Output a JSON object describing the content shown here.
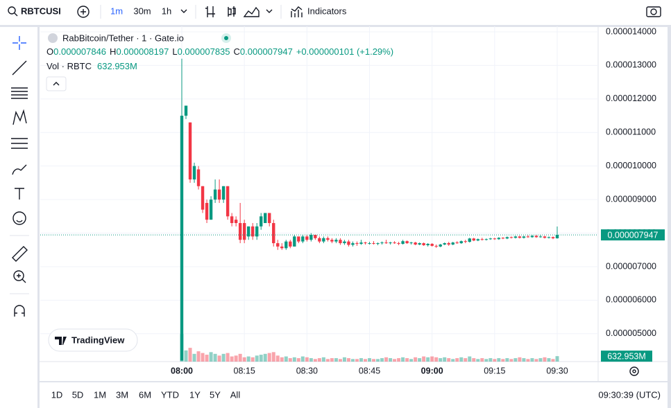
{
  "toolbar": {
    "symbol": "RBTCUSI",
    "intervals": [
      "1m",
      "30m",
      "1h"
    ],
    "indicators": "Indicators"
  },
  "chart_data": {
    "type": "candlestick",
    "title": "RabBitcoin/Tether · 1 · Gate.io",
    "ohlc_prefixes": [
      "O",
      "H",
      "L",
      "C"
    ],
    "last_labels": {
      "open": "0.000007846",
      "high": "0.000008197",
      "low": "0.000007835",
      "close": "0.000007947",
      "change": "+0.000000101 (+1.29%)"
    },
    "volume_title": "Vol · RBTC",
    "volume_value_label": "632.953M",
    "watermark": "TradingView",
    "up_color": "#089981",
    "down_color": "#f23645",
    "grid": true,
    "categories": [
      "08:00",
      null,
      null,
      null,
      null,
      null,
      null,
      null,
      null,
      null,
      null,
      null,
      null,
      null,
      null,
      "08:15",
      null,
      null,
      null,
      null,
      null,
      null,
      null,
      null,
      null,
      null,
      null,
      null,
      null,
      null,
      "08:30",
      null,
      null,
      null,
      null,
      null,
      null,
      null,
      null,
      null,
      null,
      null,
      null,
      null,
      null,
      "08:45",
      null,
      null,
      null,
      null,
      null,
      null,
      null,
      null,
      null,
      null,
      null,
      null,
      null,
      null,
      "09:00",
      null,
      null,
      null,
      null,
      null,
      null,
      null,
      null,
      null,
      null,
      null,
      null,
      null,
      null,
      "09:15",
      null,
      null,
      null,
      null,
      null,
      null,
      null,
      null,
      null,
      null,
      null,
      null,
      null,
      null,
      "09:30"
    ],
    "open": [
      4.2e-06,
      1.15e-05,
      1.13e-05,
      9.6e-06,
      9.9e-06,
      9.4e-06,
      8.9e-06,
      8.4e-06,
      9e-06,
      9.3e-06,
      9e-06,
      9.4e-06,
      8.5e-06,
      8.4e-06,
      8.3e-06,
      8.3e-06,
      7.9e-06,
      8.2e-06,
      7.9e-06,
      8.2e-06,
      8.3e-06,
      8.6e-06,
      8.3e-06,
      7.7e-06,
      7.6e-06,
      7.55e-06,
      7.75e-06,
      7.6e-06,
      7.9e-06,
      7.75e-06,
      7.9e-06,
      7.8e-06,
      7.95e-06,
      7.85e-06,
      7.75e-06,
      7.85e-06,
      7.8e-06,
      7.75e-06,
      7.8e-06,
      7.7e-06,
      7.75e-06,
      7.65e-06,
      7.7e-06,
      7.68e-06,
      7.72e-06,
      7.7e-06,
      7.7e-06,
      7.68e-06,
      7.7e-06,
      7.72e-06,
      7.7e-06,
      7.72e-06,
      7.7e-06,
      7.68e-06,
      7.76e-06,
      7.7e-06,
      7.72e-06,
      7.66e-06,
      7.7e-06,
      7.64e-06,
      7.68e-06,
      7.62e-06,
      7.6e-06,
      7.66e-06,
      7.7e-06,
      7.66e-06,
      7.72e-06,
      7.7e-06,
      7.76e-06,
      7.74e-06,
      7.84e-06,
      7.78e-06,
      7.82e-06,
      7.8e-06,
      7.82e-06,
      7.84e-06,
      7.82e-06,
      7.86e-06,
      7.84e-06,
      7.88e-06,
      7.86e-06,
      7.9e-06,
      7.86e-06,
      7.9e-06,
      7.88e-06,
      7.92e-06,
      7.88e-06,
      7.9e-06,
      7.86e-06,
      7.88e-06,
      7.846e-06
    ],
    "high": [
      1.32e-05,
      1.18e-05,
      1.13e-05,
      1.01e-05,
      1e-05,
      9.4e-06,
      9e-06,
      9.1e-06,
      9.6e-06,
      9.6e-06,
      9.4e-06,
      9.4e-06,
      8.6e-06,
      8.5e-06,
      8.9e-06,
      8.4e-06,
      8.2e-06,
      8.3e-06,
      8.3e-06,
      8.6e-06,
      8.6e-06,
      8.6e-06,
      8.4e-06,
      7.8e-06,
      7.7e-06,
      7.8e-06,
      7.8e-06,
      7.95e-06,
      7.9e-06,
      7.95e-06,
      7.95e-06,
      8e-06,
      7.95e-06,
      7.9e-06,
      7.9e-06,
      7.9e-06,
      7.85e-06,
      7.85e-06,
      7.85e-06,
      7.8e-06,
      7.8e-06,
      7.75e-06,
      7.75e-06,
      7.8e-06,
      7.74e-06,
      7.74e-06,
      7.76e-06,
      7.72e-06,
      7.75e-06,
      7.8e-06,
      7.74e-06,
      7.76e-06,
      7.74e-06,
      7.8e-06,
      7.78e-06,
      7.74e-06,
      7.74e-06,
      7.72e-06,
      7.72e-06,
      7.7e-06,
      7.7e-06,
      7.66e-06,
      7.68e-06,
      7.72e-06,
      7.74e-06,
      7.74e-06,
      7.76e-06,
      7.78e-06,
      7.8e-06,
      7.86e-06,
      7.86e-06,
      7.84e-06,
      7.86e-06,
      7.84e-06,
      7.86e-06,
      7.86e-06,
      7.88e-06,
      7.88e-06,
      7.9e-06,
      7.9e-06,
      7.92e-06,
      7.92e-06,
      7.92e-06,
      7.94e-06,
      7.94e-06,
      7.94e-06,
      7.94e-06,
      7.92e-06,
      7.9e-06,
      7.9e-06,
      8.197e-06
    ],
    "low": [
      4.2e-06,
      1.14e-05,
      9.5e-06,
      9.5e-06,
      9.3e-06,
      8.6e-06,
      8.3e-06,
      8.4e-06,
      8.9e-06,
      8.9e-06,
      8.9e-06,
      8.4e-06,
      8.2e-06,
      8.2e-06,
      7.7e-06,
      7.7e-06,
      7.8e-06,
      7.8e-06,
      7.8e-06,
      8.1e-06,
      8.3e-06,
      8.2e-06,
      7.6e-06,
      7.5e-06,
      7.5e-06,
      7.5e-06,
      7.55e-06,
      7.6e-06,
      7.7e-06,
      7.7e-06,
      7.75e-06,
      7.75e-06,
      7.8e-06,
      7.7e-06,
      7.7e-06,
      7.75e-06,
      7.7e-06,
      7.7e-06,
      7.65e-06,
      7.65e-06,
      7.6e-06,
      7.6e-06,
      7.62e-06,
      7.65e-06,
      7.66e-06,
      7.66e-06,
      7.66e-06,
      7.64e-06,
      7.66e-06,
      7.68e-06,
      7.66e-06,
      7.68e-06,
      7.64e-06,
      7.66e-06,
      7.68e-06,
      7.66e-06,
      7.64e-06,
      7.64e-06,
      7.62e-06,
      7.6e-06,
      7.6e-06,
      7.56e-06,
      7.58e-06,
      7.64e-06,
      7.62e-06,
      7.64e-06,
      7.68e-06,
      7.68e-06,
      7.7e-06,
      7.72e-06,
      7.76e-06,
      7.76e-06,
      7.78e-06,
      7.78e-06,
      7.8e-06,
      7.8e-06,
      7.8e-06,
      7.82e-06,
      7.82e-06,
      7.84e-06,
      7.84e-06,
      7.84e-06,
      7.84e-06,
      7.86e-06,
      7.86e-06,
      7.86e-06,
      7.86e-06,
      7.84e-06,
      7.84e-06,
      7.82e-06,
      7.835e-06
    ],
    "close": [
      1.15e-05,
      1.18e-05,
      9.6e-06,
      1e-05,
      9.4e-06,
      8.7e-06,
      8.4e-06,
      9e-06,
      9.3e-06,
      9e-06,
      9.4e-06,
      8.5e-06,
      8.3e-06,
      8.3e-06,
      7.8e-06,
      7.8e-06,
      8.2e-06,
      7.9e-06,
      8.2e-06,
      8.5e-06,
      8.6e-06,
      8.3e-06,
      7.7e-06,
      7.6e-06,
      7.55e-06,
      7.75e-06,
      7.6e-06,
      7.9e-06,
      7.75e-06,
      7.9e-06,
      7.8e-06,
      7.95e-06,
      7.85e-06,
      7.75e-06,
      7.85e-06,
      7.8e-06,
      7.75e-06,
      7.8e-06,
      7.7e-06,
      7.75e-06,
      7.65e-06,
      7.7e-06,
      7.68e-06,
      7.72e-06,
      7.7e-06,
      7.7e-06,
      7.68e-06,
      7.7e-06,
      7.72e-06,
      7.7e-06,
      7.72e-06,
      7.7e-06,
      7.68e-06,
      7.76e-06,
      7.7e-06,
      7.72e-06,
      7.66e-06,
      7.7e-06,
      7.64e-06,
      7.68e-06,
      7.62e-06,
      7.6e-06,
      7.66e-06,
      7.7e-06,
      7.66e-06,
      7.72e-06,
      7.7e-06,
      7.76e-06,
      7.74e-06,
      7.84e-06,
      7.78e-06,
      7.82e-06,
      7.8e-06,
      7.82e-06,
      7.84e-06,
      7.82e-06,
      7.86e-06,
      7.84e-06,
      7.88e-06,
      7.86e-06,
      7.9e-06,
      7.86e-06,
      7.9e-06,
      7.88e-06,
      7.92e-06,
      7.88e-06,
      7.9e-06,
      7.86e-06,
      7.88e-06,
      7.846e-06,
      7.947e-06
    ],
    "volume": [
      3200000000.0,
      1300000000.0,
      1600000000.0,
      900000000.0,
      1200000000.0,
      1000000000.0,
      800000000.0,
      1100000000.0,
      900000000.0,
      700000000.0,
      900000000.0,
      1000000000.0,
      600000000.0,
      700000000.0,
      900000000.0,
      500000000.0,
      600000000.0,
      500000000.0,
      700000000.0,
      800000000.0,
      900000000.0,
      1000000000.0,
      1100000000.0,
      700000000.0,
      500000000.0,
      600000000.0,
      400000000.0,
      500000000.0,
      400000000.0,
      600000000.0,
      500000000.0,
      400000000.0,
      300000000.0,
      400000000.0,
      500000000.0,
      300000000.0,
      400000000.0,
      400000000.0,
      300000000.0,
      500000000.0,
      400000000.0,
      300000000.0,
      300000000.0,
      400000000.0,
      300000000.0,
      400000000.0,
      300000000.0,
      300000000.0,
      400000000.0,
      500000000.0,
      400000000.0,
      300000000.0,
      400000000.0,
      500000000.0,
      400000000.0,
      300000000.0,
      500000000.0,
      400000000.0,
      600000000.0,
      500000000.0,
      600000000.0,
      500000000.0,
      400000000.0,
      500000000.0,
      400000000.0,
      300000000.0,
      400000000.0,
      500000000.0,
      400000000.0,
      600000000.0,
      400000000.0,
      300000000.0,
      400000000.0,
      300000000.0,
      400000000.0,
      300000000.0,
      400000000.0,
      300000000.0,
      400000000.0,
      300000000.0,
      400000000.0,
      500000000.0,
      400000000.0,
      300000000.0,
      400000000.0,
      300000000.0,
      400000000.0,
      500000000.0,
      400000000.0,
      300000000.0,
      632953000
    ],
    "ylim": [
      4.17e-06,
      1.4165e-05
    ],
    "volume_ylim": [
      0,
      39000000000.0
    ],
    "yticks": [
      {
        "value": 5e-06,
        "label": "0.000005000"
      },
      {
        "value": 6e-06,
        "label": "0.000006000"
      },
      {
        "value": 7e-06,
        "label": "0.000007000"
      },
      {
        "value": 8e-06,
        "label": "0.000008000"
      },
      {
        "value": 9e-06,
        "label": "0.000009000"
      },
      {
        "value": 1e-05,
        "label": "0.000010000"
      },
      {
        "value": 1.1e-05,
        "label": "0.000011000"
      },
      {
        "value": 1.2e-05,
        "label": "0.000012000"
      },
      {
        "value": 1.3e-05,
        "label": "0.000013000"
      },
      {
        "value": 1.4e-05,
        "label": "0.000014000"
      }
    ]
  },
  "bottom_bar": {
    "ranges": [
      "1D",
      "5D",
      "1M",
      "3M",
      "6M",
      "YTD",
      "1Y",
      "5Y",
      "All"
    ],
    "clock": "09:30:39 (UTC)"
  }
}
